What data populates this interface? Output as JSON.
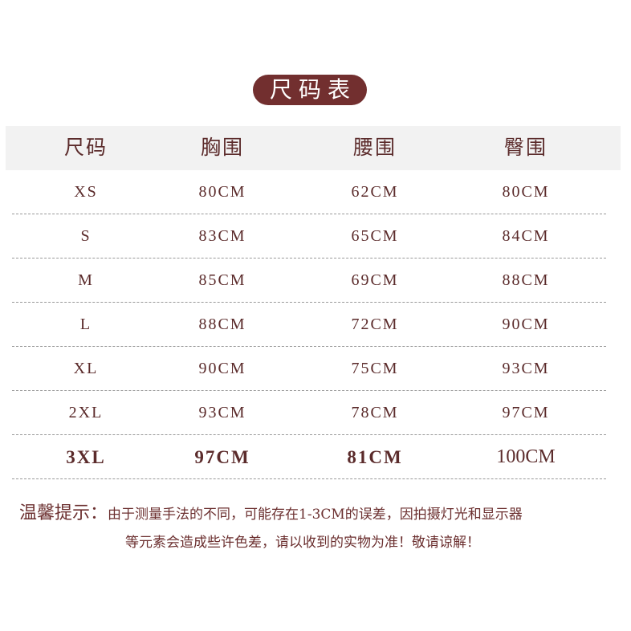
{
  "title": "尺码表",
  "headers": [
    "尺码",
    "胸围",
    "腰围",
    "臀围"
  ],
  "rows": [
    [
      "XS",
      "80CM",
      "62CM",
      "80CM"
    ],
    [
      "S",
      "83CM",
      "65CM",
      "84CM"
    ],
    [
      "M",
      "85CM",
      "69CM",
      "88CM"
    ],
    [
      "L",
      "88CM",
      "72CM",
      "90CM"
    ],
    [
      "XL",
      "90CM",
      "75CM",
      "93CM"
    ],
    [
      "2XL",
      "93CM",
      "78CM",
      "97CM"
    ],
    [
      "3XL",
      "97CM",
      "81CM",
      "100CM"
    ]
  ],
  "note": {
    "label": "温馨提示：",
    "line1": "由于测量手法的不同，可能存在1-3CM的误差，因拍摄灯光和显示器",
    "line2": "等元素会造成些许色差，请以收到的实物为准！敬请谅解！"
  },
  "colors": {
    "accent": "#722f2f",
    "header_bg": "#f2f2f2",
    "text": "#5b2b2b"
  }
}
